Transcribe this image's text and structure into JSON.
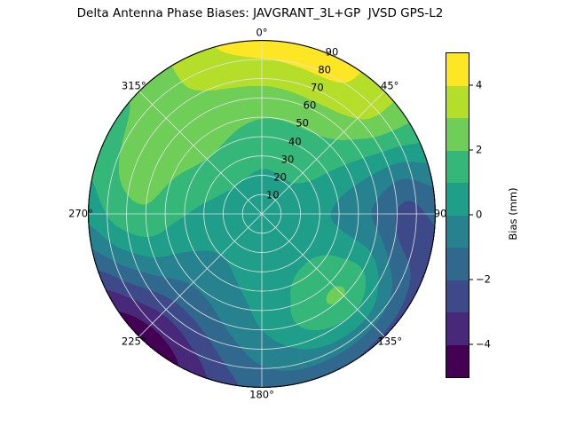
{
  "chart_data": {
    "type": "heatmap",
    "subtype": "polar_filled_contour",
    "title": "Delta Antenna Phase Biases: JAVGRANT_3L+GP  JVSD GPS-L2",
    "colorbar": {
      "label": "Bias (mm)",
      "tick_labels": [
        "4",
        "2",
        "0",
        "−2",
        "−4"
      ],
      "tick_values": [
        4,
        2,
        0,
        -2,
        -4
      ],
      "range": [
        -5,
        5
      ]
    },
    "theta_tick_labels": [
      "0°",
      "45°",
      "90°",
      "135°",
      "180°",
      "225°",
      "270°",
      "315°"
    ],
    "theta_tick_angles_deg": [
      0,
      45,
      90,
      135,
      180,
      225,
      270,
      315
    ],
    "r_tick_labels": [
      "10",
      "20",
      "30",
      "40",
      "50",
      "60",
      "70",
      "80",
      "90"
    ],
    "r_max": 90,
    "r_label_angle_deg": 22.5,
    "grid": true,
    "grid_color": "rgba(228,228,228,0.95)",
    "levels": [
      -5,
      -4,
      -3,
      -2,
      -1,
      0,
      1,
      2,
      3,
      4,
      5
    ],
    "band_colors": [
      "#440154",
      "#482878",
      "#3e4989",
      "#31688e",
      "#26828e",
      "#1f9e89",
      "#35b779",
      "#6ece58",
      "#b5de2b",
      "#fde725"
    ],
    "azimuth_deg": [
      0,
      45,
      90,
      135,
      180,
      225,
      270,
      315
    ],
    "zenith_deg": [
      0,
      15,
      30,
      45,
      60,
      75,
      90
    ],
    "values_mm": [
      [
        0.5,
        0.8,
        1.2,
        1.8,
        2.6,
        3.6,
        4.6
      ],
      [
        0.5,
        0.8,
        1.2,
        1.6,
        2.3,
        3.3,
        3.4
      ],
      [
        0.5,
        0.5,
        0.2,
        -0.4,
        -1.2,
        -2.3,
        -1.8
      ],
      [
        0.5,
        0.6,
        0.8,
        1.6,
        2.0,
        0.2,
        -2.2
      ],
      [
        0.5,
        0.6,
        0.5,
        0.3,
        0.0,
        -0.8,
        -1.6
      ],
      [
        0.5,
        0.4,
        0.0,
        -0.6,
        -1.6,
        -3.2,
        -4.7
      ],
      [
        0.5,
        0.6,
        0.8,
        1.2,
        1.8,
        1.4,
        0.3
      ],
      [
        0.5,
        0.8,
        1.5,
        2.2,
        2.6,
        2.6,
        2.2
      ]
    ]
  }
}
